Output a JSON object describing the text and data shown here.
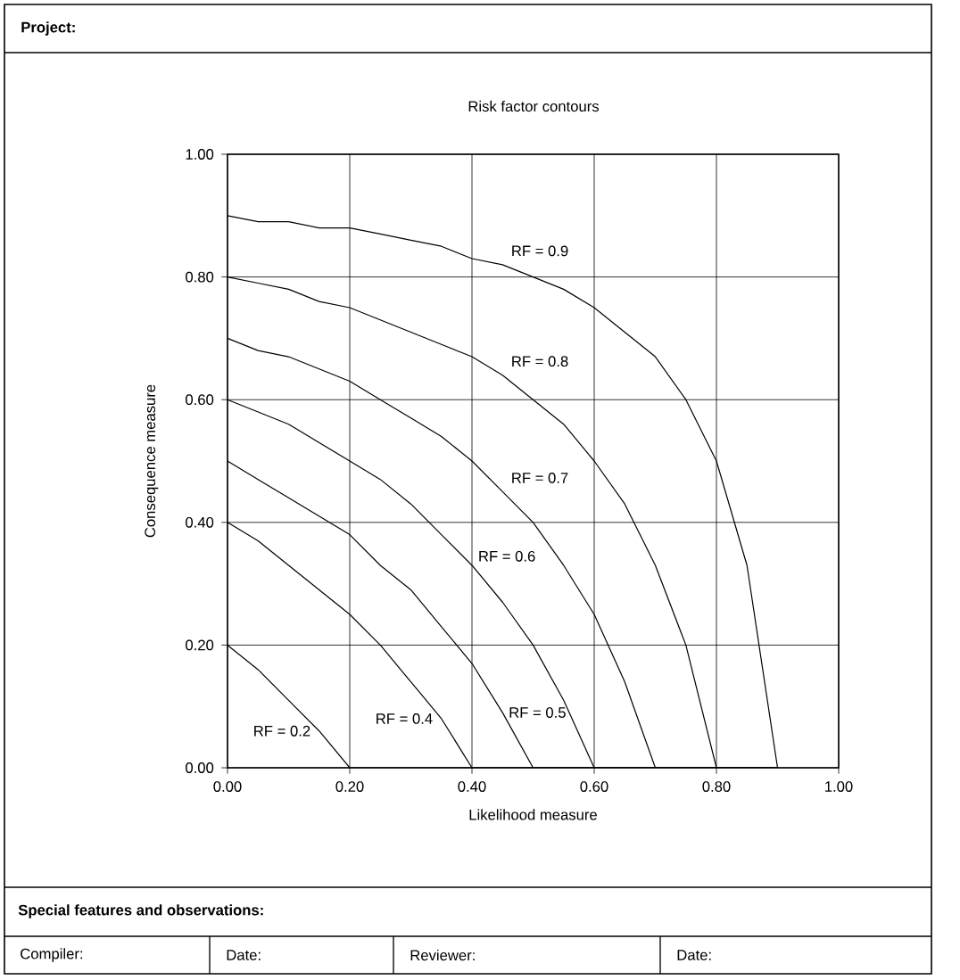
{
  "chart_data": {
    "type": "line",
    "title": "Risk factor contours",
    "xlabel": "Likelihood measure",
    "ylabel": "Consequence measure",
    "x": [
      0,
      0.05,
      0.1,
      0.15,
      0.2,
      0.25,
      0.3,
      0.35,
      0.4,
      0.45,
      0.5,
      0.55,
      0.6,
      0.65,
      0.7,
      0.75,
      0.8,
      0.85,
      0.9
    ],
    "series": [
      {
        "name": "RF = 0.2",
        "color": "#000000",
        "values": [
          0.2,
          0.16,
          0.11,
          0.06,
          0,
          0,
          0,
          0,
          0,
          0,
          0,
          0,
          0,
          0,
          0,
          0,
          0,
          0,
          0
        ]
      },
      {
        "name": "RF = 0.4",
        "color": "#000000",
        "values": [
          0.4,
          0.37,
          0.33,
          0.29,
          0.25,
          0.2,
          0.14,
          0.08,
          0,
          0,
          0,
          0,
          0,
          0,
          0,
          0,
          0,
          0,
          0
        ]
      },
      {
        "name": "RF = 0.5",
        "color": "#000000",
        "values": [
          0.5,
          0.47,
          0.44,
          0.41,
          0.38,
          0.33,
          0.29,
          0.23,
          0.17,
          0.09,
          0,
          0,
          0,
          0,
          0,
          0,
          0,
          0,
          0
        ]
      },
      {
        "name": "RF = 0.6",
        "color": "#000000",
        "values": [
          0.6,
          0.58,
          0.56,
          0.53,
          0.5,
          0.47,
          0.43,
          0.38,
          0.33,
          0.27,
          0.2,
          0.11,
          0,
          0,
          0,
          0,
          0,
          0,
          0
        ]
      },
      {
        "name": "RF = 0.7",
        "color": "#000000",
        "values": [
          0.7,
          0.68,
          0.67,
          0.65,
          0.63,
          0.6,
          0.57,
          0.54,
          0.5,
          0.45,
          0.4,
          0.33,
          0.25,
          0.14,
          0,
          0,
          0,
          0,
          0
        ]
      },
      {
        "name": "RF = 0.8",
        "color": "#000000",
        "values": [
          0.8,
          0.79,
          0.78,
          0.76,
          0.75,
          0.73,
          0.71,
          0.69,
          0.67,
          0.64,
          0.6,
          0.56,
          0.5,
          0.43,
          0.33,
          0.2,
          0,
          0,
          0
        ]
      },
      {
        "name": "RF = 0.9",
        "color": "#000000",
        "values": [
          0.9,
          0.89,
          0.89,
          0.88,
          0.88,
          0.87,
          0.86,
          0.85,
          0.83,
          0.82,
          0.8,
          0.78,
          0.75,
          0.71,
          0.67,
          0.6,
          0.5,
          0.33,
          0
        ]
      }
    ],
    "xlim": [
      0,
      1
    ],
    "ylim": [
      0,
      1
    ],
    "xticks": [
      {
        "value": 0,
        "label": "0.00"
      },
      {
        "value": 0.2,
        "label": "0.20"
      },
      {
        "value": 0.4,
        "label": "0.40"
      },
      {
        "value": 0.6,
        "label": "0.60"
      },
      {
        "value": 0.8,
        "label": "0.80"
      },
      {
        "value": 1,
        "label": "1.00"
      }
    ],
    "yticks": [
      {
        "value": 0,
        "label": "0.00"
      },
      {
        "value": 0.2,
        "label": "0.20"
      },
      {
        "value": 0.4,
        "label": "0.40"
      },
      {
        "value": 0.6,
        "label": "0.60"
      },
      {
        "value": 0.8,
        "label": "0.80"
      },
      {
        "value": 1,
        "label": "1.00"
      }
    ],
    "grid": true,
    "marker": "none",
    "line_style": "solid",
    "annotations": [
      "Project:",
      "Special features and observations:",
      "Compiler:",
      "Date:",
      "Reviewer:",
      "Date:"
    ]
  }
}
